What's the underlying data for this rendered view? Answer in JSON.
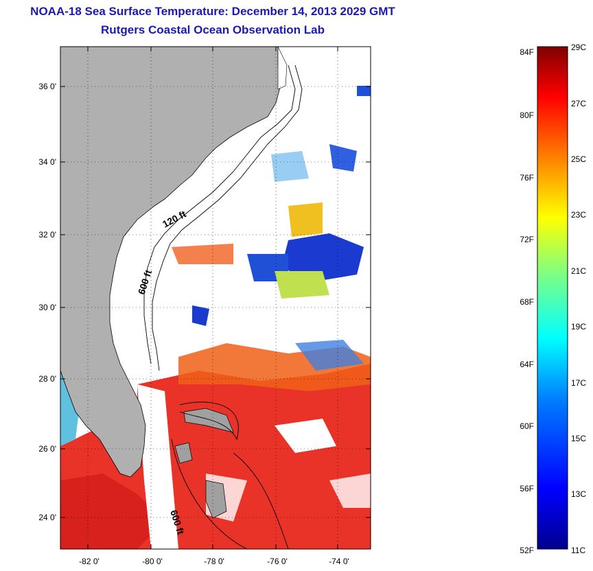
{
  "title": "NOAA-18 Sea Surface Temperature:  December 14, 2013 2029 GMT",
  "subtitle": "Rutgers Coastal Ocean Observation Lab",
  "map": {
    "lat_ticks": [
      "36 0'",
      "34 0'",
      "32 0'",
      "30 0'",
      "28 0'",
      "26 0'",
      "24 0'"
    ],
    "lon_ticks": [
      "-82 0'",
      "-80 0'",
      "-78 0'",
      "-76 0'",
      "-74 0'"
    ],
    "contour_labels": [
      "120 ft",
      "600 ft",
      "600 ft"
    ],
    "colors": {
      "land": "#b0b0b0",
      "ocean_no_data": "#ffffff",
      "warm": "#e8281c",
      "cool": "#1a3ad0",
      "mid": "#f0d020"
    }
  },
  "colorbar": {
    "fahrenheit": [
      "84F",
      "80F",
      "76F",
      "72F",
      "68F",
      "64F",
      "60F",
      "56F",
      "52F"
    ],
    "celsius": [
      "29C",
      "27C",
      "25C",
      "23C",
      "21C",
      "19C",
      "17C",
      "15C",
      "13C",
      "11C"
    ],
    "stops": [
      "#00008f",
      "#0000ff",
      "#0080ff",
      "#00ffff",
      "#80ff80",
      "#ffff00",
      "#ff8000",
      "#ff0000",
      "#800000"
    ]
  }
}
